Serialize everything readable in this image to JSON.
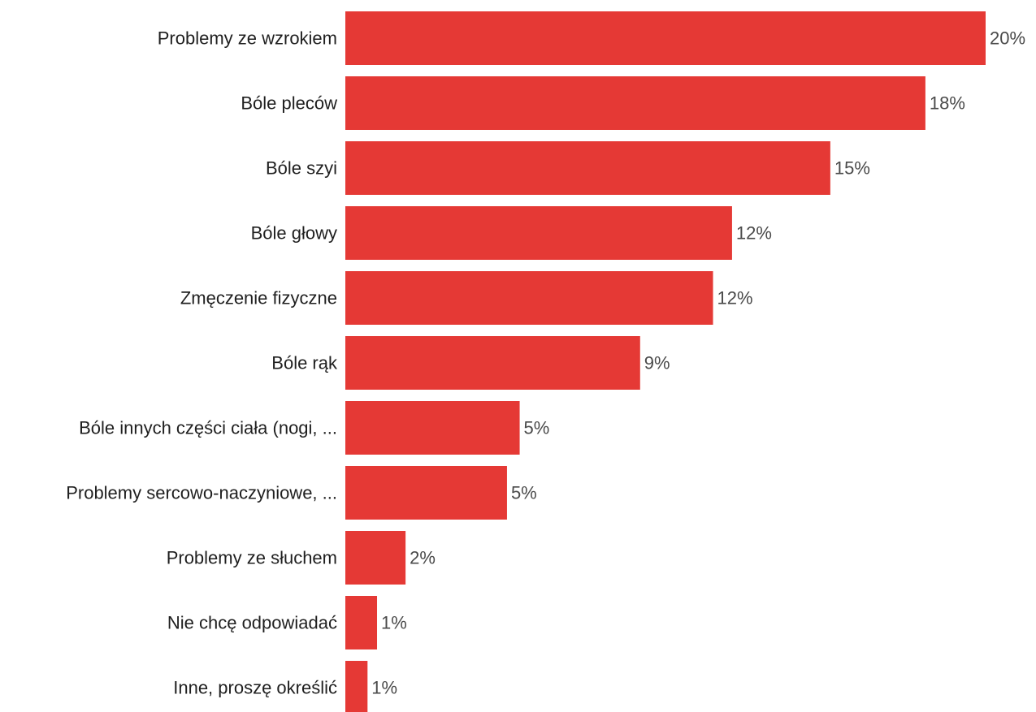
{
  "chart_data": {
    "type": "bar",
    "orientation": "horizontal",
    "categories": [
      "Problemy ze wzrokiem",
      "Bóle pleców",
      "Bóle szyi",
      "Bóle głowy",
      "Zmęczenie fizyczne",
      "Bóle rąk",
      "Bóle innych części ciała (nogi, ...",
      "Problemy sercowo-naczyniowe, ...",
      "Problemy ze słuchem",
      "Nie chcę odpowiadać",
      "Inne, proszę określić"
    ],
    "values": [
      20.2,
      18.3,
      15.3,
      12.2,
      11.6,
      9.3,
      5.5,
      5.1,
      1.9,
      1.0,
      0.7
    ],
    "value_labels": [
      "20%",
      "18%",
      "15%",
      "12%",
      "12%",
      "9%",
      "5%",
      "5%",
      "2%",
      "1%",
      "1%"
    ],
    "xlim": [
      0,
      20.2
    ],
    "grid": false,
    "legend": "none",
    "bar_color": "#e53935",
    "title": "",
    "xlabel": "",
    "ylabel": ""
  }
}
